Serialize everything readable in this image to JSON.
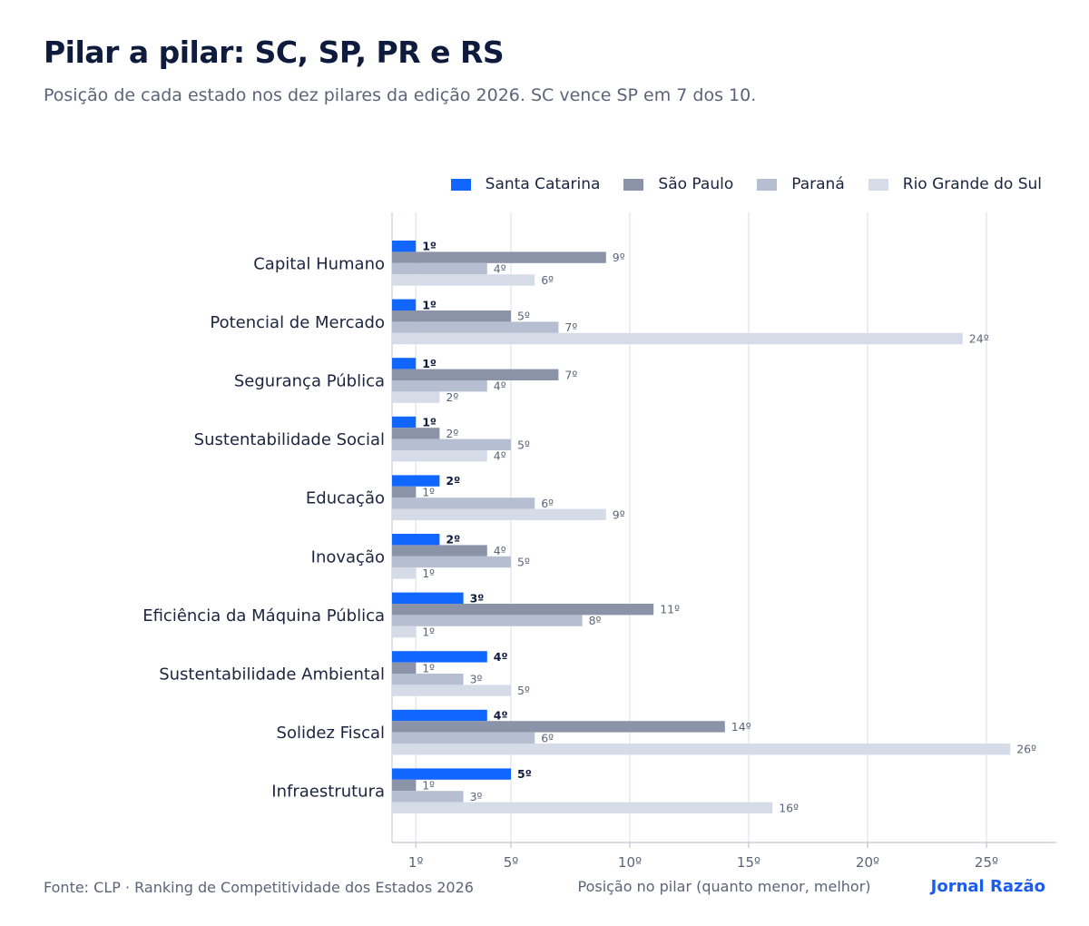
{
  "header": {
    "title": "Pilar a pilar: SC, SP, PR e RS",
    "subtitle": "Posição de cada estado nos dez pilares da edição 2026. SC vence SP em 7 dos 10."
  },
  "footer": {
    "source": "Fonte: CLP · Ranking de Competitividade dos Estados 2026",
    "brand": "Jornal Razão"
  },
  "chart_data": {
    "type": "bar",
    "orientation": "horizontal",
    "title": "Pilar a pilar: SC, SP, PR e RS",
    "subtitle": "Posição de cada estado nos dez pilares da edição 2026. SC vence SP em 7 dos 10.",
    "xlabel": "Posição no pilar (quanto menor, melhor)",
    "ylabel": "",
    "xlim": [
      1,
      28
    ],
    "x_ticks": [
      1,
      5,
      10,
      15,
      20,
      25
    ],
    "x_tick_labels": [
      "1º",
      "5º",
      "10º",
      "15º",
      "20º",
      "25º"
    ],
    "value_suffix": "º",
    "grid": "vertical",
    "legend_position": "top-right",
    "categories": [
      "Capital Humano",
      "Potencial de Mercado",
      "Segurança Pública",
      "Sustentabilidade Social",
      "Educação",
      "Inovação",
      "Eficiência da Máquina Pública",
      "Sustentabilidade Ambiental",
      "Solidez Fiscal",
      "Infraestrutura"
    ],
    "series": [
      {
        "name": "Santa Catarina",
        "color": "#1166ff",
        "values": [
          1,
          1,
          1,
          1,
          2,
          2,
          3,
          4,
          4,
          5
        ]
      },
      {
        "name": "São Paulo",
        "color": "#8b93a8",
        "values": [
          9,
          5,
          7,
          2,
          1,
          4,
          11,
          1,
          14,
          1
        ]
      },
      {
        "name": "Paraná",
        "color": "#b6bfd1",
        "values": [
          4,
          7,
          4,
          5,
          6,
          5,
          8,
          3,
          6,
          3
        ]
      },
      {
        "name": "Rio Grande do Sul",
        "color": "#d6dce7",
        "values": [
          6,
          24,
          2,
          4,
          9,
          1,
          1,
          5,
          26,
          16
        ]
      }
    ]
  }
}
